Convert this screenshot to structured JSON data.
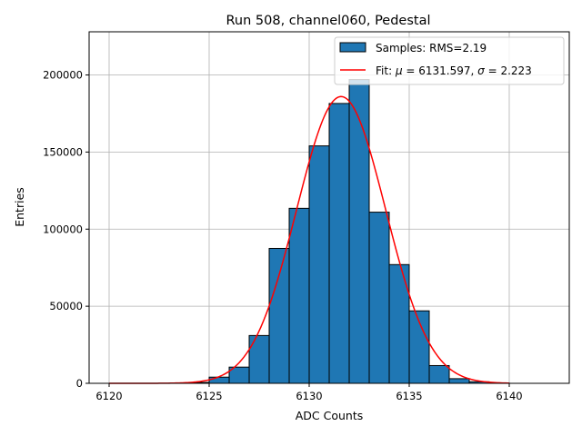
{
  "chart_data": {
    "type": "bar",
    "title": "Run 508, channel060, Pedestal",
    "xlabel": "ADC Counts",
    "ylabel": "Entries",
    "xlim": [
      6119,
      6143
    ],
    "ylim": [
      0,
      228000
    ],
    "xticks": [
      6120,
      6125,
      6130,
      6135,
      6140
    ],
    "yticks": [
      0,
      50000,
      100000,
      150000,
      200000
    ],
    "grid": true,
    "legend_position": "top-right",
    "histogram": {
      "name": "Samples: RMS=2.19",
      "color": "#1f77b4",
      "edge_color": "#000000",
      "bin_edges": [
        6123,
        6124,
        6125,
        6126,
        6127,
        6128,
        6129,
        6130,
        6131,
        6132,
        6133,
        6134,
        6135,
        6136,
        6137,
        6138,
        6139,
        6140
      ],
      "counts": [
        100,
        600,
        4000,
        10500,
        31000,
        87500,
        113500,
        154000,
        181500,
        197000,
        111000,
        77000,
        47000,
        11500,
        3000,
        1000,
        150
      ]
    },
    "fit": {
      "name": "Fit: μ = 6131.597, σ = 2.223",
      "name_parts": [
        "Fit: ",
        "μ",
        " = 6131.597, ",
        "σ",
        " = 2.223"
      ],
      "color": "#ff0000",
      "type": "gaussian",
      "mu": 6131.597,
      "sigma": 2.223,
      "amplitude": 186000,
      "x_range": [
        6120,
        6140
      ]
    }
  }
}
